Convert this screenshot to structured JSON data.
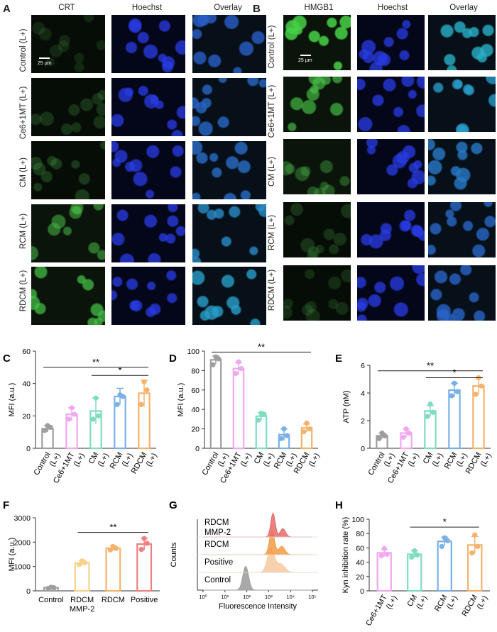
{
  "panels": {
    "A": {
      "letter": "A",
      "columns": [
        "CRT",
        "Hoechst",
        "Overlay"
      ],
      "rows": [
        "Control (L+)",
        "Ce6+1MT (L+)",
        "CM (L+)",
        "RCM (L+)",
        "RDCM (L+)"
      ],
      "scale_bar": "25 µm",
      "stain_colors": [
        "#3fa63a",
        "#2433d6",
        "mixed"
      ]
    },
    "B": {
      "letter": "B",
      "columns": [
        "HMGB1",
        "Hoechst",
        "Overlay"
      ],
      "rows": [
        "Control (L+)",
        "Ce6+1MT (L+)",
        "CM (L+)",
        "RCM (L+)",
        "RDCM (L+)"
      ],
      "scale_bar": "25 µm",
      "stain_colors": [
        "#3fbf4a",
        "#2433d6",
        "mixed"
      ]
    }
  },
  "chart_data": [
    {
      "panel": "C",
      "type": "bar",
      "categories": [
        "Control\n(L+)",
        "Ce6+1MT\n(L+)",
        "CM\n(L+)",
        "RCM\n(L+)",
        "RDCM\n(L+)"
      ],
      "values": [
        12,
        21,
        23,
        32,
        34
      ],
      "errors": [
        2,
        4,
        8,
        5,
        8
      ],
      "points": [
        [
          11,
          13,
          14
        ],
        [
          18,
          21,
          25
        ],
        [
          18,
          20,
          31
        ],
        [
          27,
          32,
          33
        ],
        [
          27,
          36,
          41
        ]
      ],
      "colors": [
        "#9e9e9e",
        "#f0a8f0",
        "#7fdcc0",
        "#7ab0e8",
        "#f5b26b"
      ],
      "ylabel": "MFI (a.u.)",
      "ylim": [
        0,
        60
      ],
      "yticks": [
        0,
        20,
        40,
        60
      ],
      "significance": [
        {
          "from": 0,
          "to": 4,
          "label": "**",
          "y": 50
        },
        {
          "from": 2,
          "to": 4,
          "label": "*",
          "y": 45
        }
      ]
    },
    {
      "panel": "D",
      "type": "bar",
      "categories": [
        "Control\n(L+)",
        "Ce6+1MT\n(L+)",
        "CM\n(L+)",
        "RCM\n(L+)",
        "RDCM\n(L+)"
      ],
      "values": [
        91,
        82,
        33,
        14,
        21
      ],
      "errors": [
        4,
        6,
        4,
        6,
        4
      ],
      "points": [
        [
          86,
          92,
          94
        ],
        [
          77,
          82,
          89
        ],
        [
          29,
          35,
          36
        ],
        [
          10,
          13,
          20
        ],
        [
          17,
          20,
          26
        ]
      ],
      "colors": [
        "#9e9e9e",
        "#f0a8f0",
        "#7fdcc0",
        "#7ab0e8",
        "#f5b26b"
      ],
      "ylabel": "MFI (a.u.)",
      "ylim": [
        0,
        100
      ],
      "yticks": [
        0,
        20,
        40,
        60,
        80,
        100
      ],
      "significance": [
        {
          "from": 0,
          "to": 4,
          "label": "**",
          "y": 99
        }
      ]
    },
    {
      "panel": "E",
      "type": "bar",
      "categories": [
        "Control\n(L+)",
        "Ce6+1MT\n(L+)",
        "CM\n(L+)",
        "RCM\n(L+)",
        "RDCM\n(L+)"
      ],
      "values": [
        0.9,
        1.1,
        2.7,
        4.2,
        4.5
      ],
      "errors": [
        0.2,
        0.3,
        0.4,
        0.5,
        0.6
      ],
      "points": [
        [
          0.7,
          0.9,
          1.1
        ],
        [
          0.8,
          1.1,
          1.4
        ],
        [
          2.3,
          2.6,
          3.2
        ],
        [
          3.8,
          4.1,
          4.7
        ],
        [
          3.9,
          4.5,
          5.1
        ]
      ],
      "colors": [
        "#9e9e9e",
        "#f0a8f0",
        "#7fdcc0",
        "#7ab0e8",
        "#f5b26b"
      ],
      "ylabel": "ATP (nM)",
      "ylim": [
        0,
        6
      ],
      "yticks": [
        0,
        2,
        4,
        6
      ],
      "significance": [
        {
          "from": 0,
          "to": 4,
          "label": "**",
          "y": 5.6
        },
        {
          "from": 2,
          "to": 4,
          "label": "*",
          "y": 5.1
        }
      ]
    },
    {
      "panel": "F",
      "type": "bar",
      "categories": [
        "Control",
        "RDCM\nMMP-2",
        "RDCM",
        "Positive"
      ],
      "values": [
        130,
        1150,
        1750,
        1920
      ],
      "errors": [
        30,
        100,
        100,
        250
      ],
      "points": [
        [
          100,
          130,
          150
        ],
        [
          1080,
          1150,
          1230
        ],
        [
          1680,
          1740,
          1820
        ],
        [
          1700,
          1950,
          2150
        ]
      ],
      "colors": [
        "#9e9e9e",
        "#f8d28a",
        "#f5b26b",
        "#f08080"
      ],
      "ylabel": "MFI (a.u.)",
      "ylim": [
        0,
        3000
      ],
      "yticks": [
        0,
        1000,
        2000,
        3000
      ],
      "significance": [
        {
          "from": 1,
          "to": 3,
          "label": "**",
          "y": 2400
        }
      ]
    },
    {
      "panel": "G",
      "type": "area",
      "xlabel": "Fluorescence  Intensity",
      "ylabel": "Counts",
      "xticks": [
        "10⁰",
        "10¹",
        "10²",
        "10³",
        "10⁴",
        "10⁵"
      ],
      "series": [
        {
          "name": "Control",
          "color": "#9a9a9a",
          "peak_log": 1.95,
          "width": 0.18
        },
        {
          "name": "Positive",
          "color": "#f7c9a0",
          "peak_log": 3.1,
          "width": 0.22
        },
        {
          "name": "RDCM",
          "color": "#f39a45",
          "peak_log": 3.15,
          "width": 0.16
        },
        {
          "name": "RDCM\nMMP-2",
          "color": "#e86a6a",
          "peak_log": 3.2,
          "width": 0.14
        }
      ]
    },
    {
      "panel": "H",
      "type": "bar",
      "categories": [
        "Ce6+1MT\n(L+)",
        "CM\n(L+)",
        "RCM\n(L+)",
        "RDCM\n(L+)"
      ],
      "values": [
        53,
        51,
        69,
        64
      ],
      "errors": [
        5,
        5,
        6,
        12
      ],
      "points": [
        [
          49,
          51,
          59
        ],
        [
          47,
          50,
          56
        ],
        [
          62,
          70,
          74
        ],
        [
          53,
          62,
          78
        ]
      ],
      "colors": [
        "#f0a8f0",
        "#7fdcc0",
        "#7ab0e8",
        "#f5b26b"
      ],
      "ylabel": "Kyn inhibition rate (%)",
      "ylim": [
        0,
        100
      ],
      "yticks": [
        0,
        20,
        40,
        60,
        80,
        100
      ],
      "significance": [
        {
          "from": 1,
          "to": 3,
          "label": "*",
          "y": 89
        }
      ]
    }
  ]
}
